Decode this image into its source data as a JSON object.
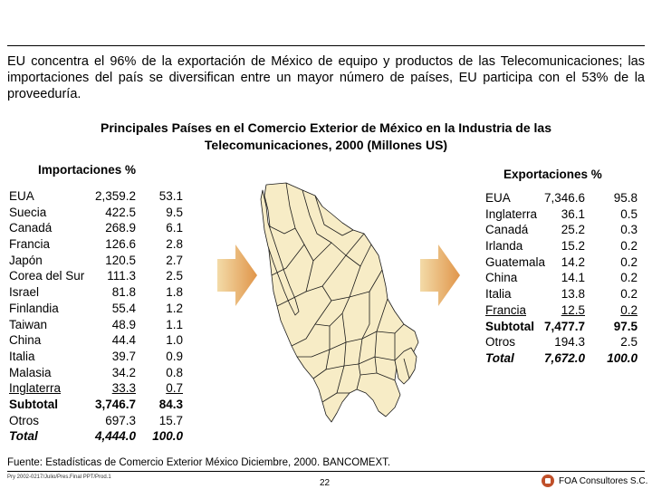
{
  "intro": "EU concentra el 96% de la exportación de México de equipo y productos de las Telecomunicaciones; las importaciones del país se diversifican entre un mayor número de países, EU participa con el 53% de la proveeduría.",
  "title": "Principales Países en el Comercio Exterior de México en la Industria de las Telecomunicaciones, 2000 (Millones US)",
  "imports": {
    "heading": "Importaciones %",
    "rows": [
      {
        "name": "EUA",
        "value": "2,359.2",
        "pct": "53.1",
        "style": ""
      },
      {
        "name": "Suecia",
        "value": "422.5",
        "pct": "9.5",
        "style": ""
      },
      {
        "name": "Canadá",
        "value": "268.9",
        "pct": "6.1",
        "style": ""
      },
      {
        "name": "Francia",
        "value": "126.6",
        "pct": "2.8",
        "style": ""
      },
      {
        "name": "Japón",
        "value": "120.5",
        "pct": "2.7",
        "style": ""
      },
      {
        "name": "Corea del Sur",
        "value": "111.3",
        "pct": "2.5",
        "style": ""
      },
      {
        "name": "Israel",
        "value": "81.8",
        "pct": "1.8",
        "style": ""
      },
      {
        "name": "Finlandia",
        "value": "55.4",
        "pct": "1.2",
        "style": ""
      },
      {
        "name": "Taiwan",
        "value": "48.9",
        "pct": "1.1",
        "style": ""
      },
      {
        "name": "China",
        "value": "44.4",
        "pct": "1.0",
        "style": ""
      },
      {
        "name": "Italia",
        "value": "39.7",
        "pct": "0.9",
        "style": ""
      },
      {
        "name": "Malasia",
        "value": "34.2",
        "pct": "0.8",
        "style": ""
      },
      {
        "name": "Inglaterra",
        "value": "33.3",
        "pct": "0.7",
        "style": "ul"
      },
      {
        "name": "Subtotal",
        "value": "3,746.7",
        "pct": "84.3",
        "style": "bold"
      },
      {
        "name": "Otros",
        "value": "697.3",
        "pct": "15.7",
        "style": ""
      },
      {
        "name": "Total",
        "value": "4,444.0",
        "pct": "100.0",
        "style": "ital"
      }
    ]
  },
  "exports": {
    "heading": "Exportaciones %",
    "rows": [
      {
        "name": "EUA",
        "value": "7,346.6",
        "pct": "95.8",
        "style": ""
      },
      {
        "name": "Inglaterra",
        "value": "36.1",
        "pct": "0.5",
        "style": ""
      },
      {
        "name": "Canadá",
        "value": "25.2",
        "pct": "0.3",
        "style": ""
      },
      {
        "name": "Irlanda",
        "value": "15.2",
        "pct": "0.2",
        "style": ""
      },
      {
        "name": "Guatemala",
        "value": "14.2",
        "pct": "0.2",
        "style": ""
      },
      {
        "name": "China",
        "value": "14.1",
        "pct": "0.2",
        "style": ""
      },
      {
        "name": "Italia",
        "value": "13.8",
        "pct": "0.2",
        "style": ""
      },
      {
        "name": "Francia",
        "value": "12.5",
        "pct": "0.2",
        "style": "ul"
      },
      {
        "name": "Subtotal",
        "value": "7,477.7",
        "pct": "97.5",
        "style": "bold"
      },
      {
        "name": "Otros",
        "value": "194.3",
        "pct": "2.5",
        "style": ""
      },
      {
        "name": "Total",
        "value": "7,672.0",
        "pct": "100.0",
        "style": "ital"
      }
    ]
  },
  "source": "Fuente: Estadísticas de Comercio Exterior México Diciembre, 2000. BANCOMEXT.",
  "footer": {
    "filepath": "Pry 2002-0217/Julio/Pres.Final PPT/Prod.1",
    "page": "22",
    "company": "FOA Consultores S.C."
  },
  "colors": {
    "map_fill": "#f7ecc6",
    "map_stroke": "#1a1a1a",
    "arrow_light": "#f3dba8",
    "arrow_dark": "#e0954a",
    "logo": "#c0502a"
  },
  "icons": {
    "left_arrow": "arrow-right-icon",
    "right_arrow": "arrow-right-icon",
    "logo": "company-logo-icon"
  }
}
